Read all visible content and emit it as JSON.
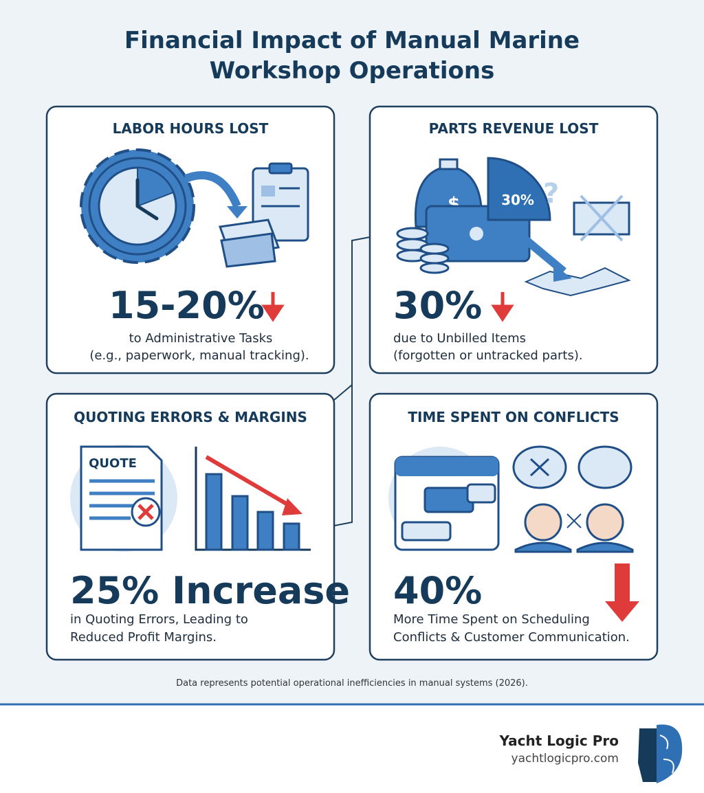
{
  "title": [
    "Financial Impact of Manual Marine",
    "Workshop Operations"
  ],
  "cards": [
    {
      "heading": "LABOR HOURS LOST",
      "stat": "15-20%",
      "description": [
        "to Administrative Tasks",
        "(e.g., paperwork, manual tracking)."
      ]
    },
    {
      "heading": "PARTS REVENUE LOST",
      "icon_label": "30%",
      "stat": "30%",
      "description": [
        "due to Unbilled Items",
        "(forgotten or untracked parts)."
      ]
    },
    {
      "heading": "QUOTING ERRORS & MARGINS",
      "icon_label": "QUOTE",
      "stat": "25% Increase",
      "description": [
        "in Quoting Errors, Leading to",
        "Reduced Profit Margins."
      ]
    },
    {
      "heading": "TIME SPENT ON CONFLICTS",
      "stat": "40%",
      "description": [
        "More Time Spent on Scheduling",
        "Conflicts & Customer Communication."
      ]
    }
  ],
  "footnote": "Data represents potential operational inefficiencies in manual systems (2026).",
  "brand": {
    "name": "Yacht Logic Pro",
    "url": "yachtlogicpro.com"
  }
}
